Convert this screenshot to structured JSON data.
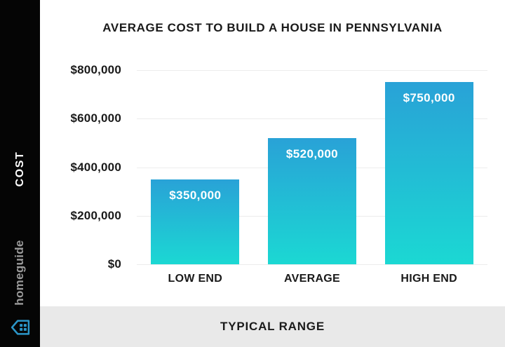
{
  "title": "AVERAGE COST TO BUILD A HOUSE IN PENNSYLVANIA",
  "sidebar": {
    "axis_title": "COST",
    "brand": "homeguide",
    "background": "#050505",
    "brand_color": "#9a9a9a",
    "logo_color": "#2b96c9"
  },
  "footer": {
    "label": "TYPICAL RANGE",
    "background": "#e9e9e9"
  },
  "chart_data": {
    "type": "bar",
    "title": "AVERAGE COST TO BUILD A HOUSE IN PENNSYLVANIA",
    "categories": [
      "LOW END",
      "AVERAGE",
      "HIGH END"
    ],
    "values": [
      350000,
      520000,
      750000
    ],
    "value_labels": [
      "$350,000",
      "$520,000",
      "$750,000"
    ],
    "xlabel": "TYPICAL RANGE",
    "ylabel": "COST",
    "ylim": [
      0,
      800000
    ],
    "yticks": [
      {
        "value": 0,
        "label": "$0"
      },
      {
        "value": 200000,
        "label": "$200,000"
      },
      {
        "value": 400000,
        "label": "$400,000"
      },
      {
        "value": 600000,
        "label": "$600,000"
      },
      {
        "value": 800000,
        "label": "$800,000"
      }
    ],
    "grid": true,
    "legend": false,
    "gridline_color": "#ececec",
    "bar_gradient_top": "#29a2d7",
    "bar_gradient_bottom": "#1bd8d3",
    "bar_label_color": "#ffffff",
    "label_color": "#1a1a1a"
  }
}
